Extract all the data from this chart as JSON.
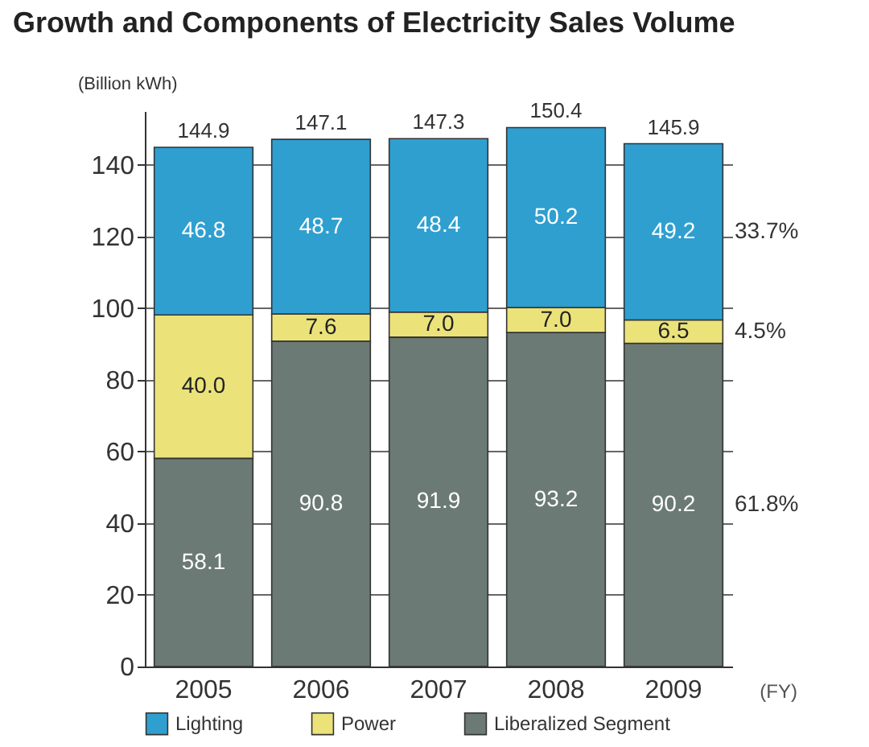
{
  "chart_data": {
    "type": "bar",
    "title": "Growth and Components of Electricity Sales Volume",
    "ylabel": "(Billion kWh)",
    "xlabel": "(FY)",
    "categories": [
      "2005",
      "2006",
      "2007",
      "2008",
      "2009"
    ],
    "series": [
      {
        "name": "Liberalized Segment",
        "color": "#6b7a74",
        "values": [
          58.1,
          90.8,
          91.9,
          93.2,
          90.2
        ],
        "value_labels": [
          "58.1",
          "90.8",
          "91.9",
          "93.2",
          "90.2"
        ]
      },
      {
        "name": "Power",
        "color": "#ebe37a",
        "values": [
          40.0,
          7.6,
          7.0,
          7.0,
          6.5
        ],
        "value_labels": [
          "40.0",
          "7.6",
          "7.0",
          "7.0",
          "6.5"
        ]
      },
      {
        "name": "Lighting",
        "color": "#2f9fd0",
        "values": [
          46.8,
          48.7,
          48.4,
          50.2,
          49.2
        ],
        "value_labels": [
          "46.8",
          "48.7",
          "48.4",
          "50.2",
          "49.2"
        ]
      }
    ],
    "stacked": true,
    "totals": [
      "144.9",
      "147.1",
      "147.3",
      "150.4",
      "145.9"
    ],
    "ylim": [
      0,
      155
    ],
    "yticks": [
      0,
      20,
      40,
      60,
      80,
      100,
      120,
      140
    ],
    "grid": "y",
    "legend": "bottom",
    "annotations": [
      "33.7%",
      "4.5%",
      "61.8%"
    ]
  }
}
